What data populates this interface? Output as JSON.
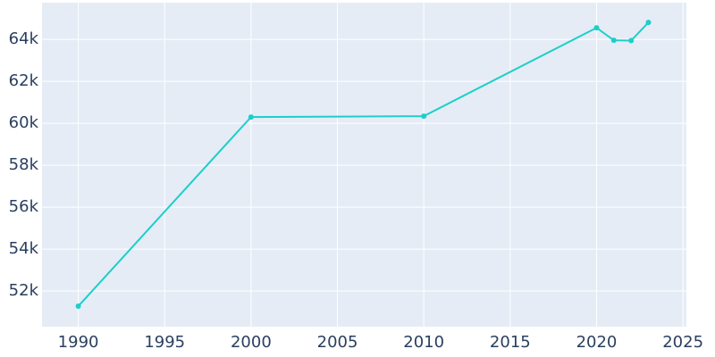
{
  "chart_data": {
    "type": "line",
    "x": [
      1990,
      2000,
      2010,
      2020,
      2021,
      2022,
      2023
    ],
    "series": [
      {
        "color": "#1ccfc9",
        "values": [
          51277,
          60298,
          60340,
          64553,
          63957,
          63940,
          64808
        ]
      }
    ],
    "xlim": [
      1987.9,
      2025.2
    ],
    "ylim": [
      50300,
      65750
    ],
    "xticks": [
      1990,
      1995,
      2000,
      2005,
      2010,
      2015,
      2020,
      2025
    ],
    "yticks": [
      {
        "value": 52000,
        "label": "52k"
      },
      {
        "value": 54000,
        "label": "54k"
      },
      {
        "value": 56000,
        "label": "56k"
      },
      {
        "value": 58000,
        "label": "58k"
      },
      {
        "value": 60000,
        "label": "60k"
      },
      {
        "value": 62000,
        "label": "62k"
      },
      {
        "value": 64000,
        "label": "64k"
      }
    ],
    "grid": true,
    "background": "#e5ecf6"
  }
}
